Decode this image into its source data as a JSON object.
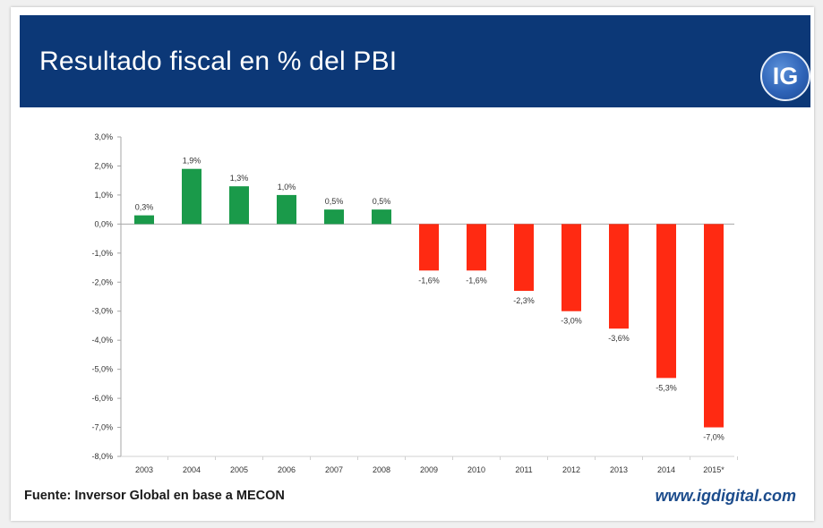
{
  "header": {
    "title": "Resultado fiscal en % del PBI",
    "logo_text": "IG",
    "bg_color": "#0c3877"
  },
  "footer": {
    "source": "Fuente: Inversor Global en base a MECON",
    "url": "www.igdigital.com"
  },
  "chart_data": {
    "type": "bar",
    "title": "Resultado fiscal en % del PBI",
    "xlabel": "",
    "ylabel": "",
    "categories": [
      "2003",
      "2004",
      "2005",
      "2006",
      "2007",
      "2008",
      "2009",
      "2010",
      "2011",
      "2012",
      "2013",
      "2014",
      "2015*"
    ],
    "values": [
      0.3,
      1.9,
      1.3,
      1.0,
      0.5,
      0.5,
      -1.6,
      -1.6,
      -2.3,
      -3.0,
      -3.6,
      -5.3,
      -7.0
    ],
    "value_labels": [
      "0,3%",
      "1,9%",
      "1,3%",
      "1,0%",
      "0,5%",
      "0,5%",
      "-1,6%",
      "-1,6%",
      "-2,3%",
      "-3,0%",
      "-3,6%",
      "-5,3%",
      "-7,0%"
    ],
    "ylim": [
      -8,
      3
    ],
    "yticks": [
      3,
      2,
      1,
      0,
      -1,
      -2,
      -3,
      -4,
      -5,
      -6,
      -7,
      -8
    ],
    "ytick_labels": [
      "3,0%",
      "2,0%",
      "1,0%",
      "0,0%",
      "-1,0%",
      "-2,0%",
      "-3,0%",
      "-4,0%",
      "-5,0%",
      "-6,0%",
      "-7,0%",
      "-8,0%"
    ],
    "grid": false,
    "legend": "none",
    "colors": {
      "positive": "#1a9a4a",
      "negative": "#ff2a12",
      "axis": "#a6a6a6",
      "text": "#333333"
    }
  }
}
